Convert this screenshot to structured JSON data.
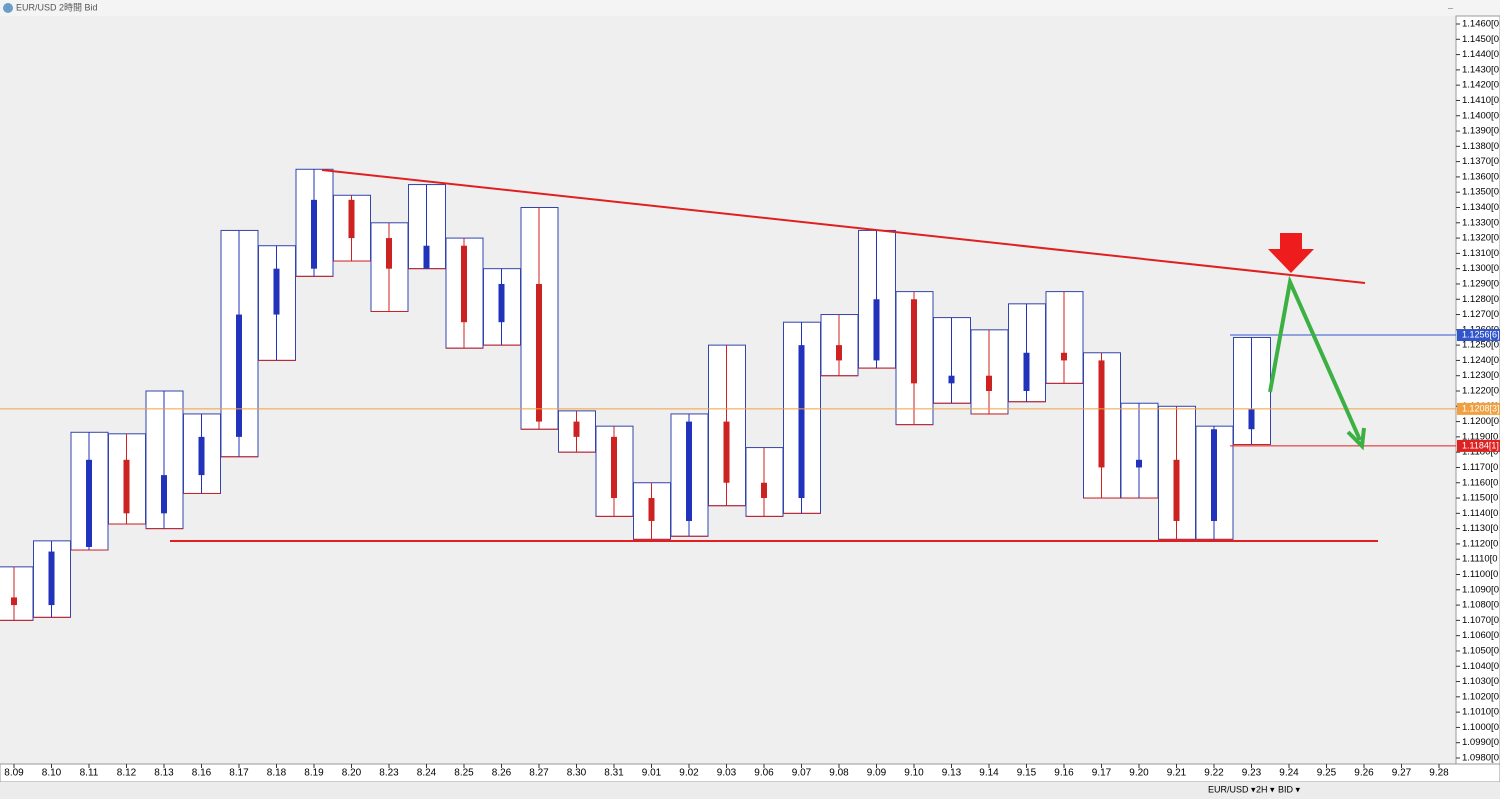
{
  "window": {
    "title": "EUR/USD 2時間 Bid"
  },
  "toolbar": {
    "symbol": "EUR/USD ▾",
    "period": "2H ▾",
    "side": "BID ▾"
  },
  "chart_data": {
    "type": "candlestick",
    "x": [
      "8.09",
      "8.10",
      "8.11",
      "8.12",
      "8.13",
      "8.16",
      "8.17",
      "8.18",
      "8.19",
      "8.20",
      "8.23",
      "8.24",
      "8.25",
      "8.26",
      "8.27",
      "8.30",
      "8.31",
      "9.01",
      "9.02",
      "9.03",
      "9.06",
      "9.07",
      "9.08",
      "9.09",
      "9.10",
      "9.13",
      "9.14",
      "9.15",
      "9.16",
      "9.17",
      "9.20",
      "9.21",
      "9.22",
      "9.23",
      "9.24",
      "9.25",
      "9.26",
      "9.27",
      "9.28"
    ],
    "open": [
      1.1085,
      1.108,
      1.1118,
      1.1175,
      1.114,
      1.1165,
      1.119,
      1.127,
      1.13,
      1.1345,
      1.132,
      1.13,
      1.1315,
      1.1265,
      1.129,
      1.12,
      1.119,
      1.115,
      1.1135,
      1.12,
      1.116,
      1.115,
      1.125,
      1.124,
      1.128,
      1.1225,
      1.123,
      1.122,
      1.1245,
      1.124,
      1.117,
      1.1175,
      1.1135,
      1.1195,
      null,
      null,
      null,
      null,
      null
    ],
    "high": [
      1.1105,
      1.1122,
      1.1193,
      1.1192,
      1.122,
      1.1205,
      1.1325,
      1.1315,
      1.1365,
      1.1348,
      1.133,
      1.1355,
      1.132,
      1.13,
      1.134,
      1.1207,
      1.1197,
      1.116,
      1.1205,
      1.125,
      1.1183,
      1.1265,
      1.127,
      1.1325,
      1.1285,
      1.1268,
      1.126,
      1.1277,
      1.1285,
      1.1245,
      1.1212,
      1.121,
      1.1197,
      1.1255,
      null,
      null,
      null,
      null,
      null
    ],
    "low": [
      1.107,
      1.1072,
      1.1116,
      1.1133,
      1.113,
      1.1153,
      1.1177,
      1.124,
      1.1295,
      1.1305,
      1.1272,
      1.13,
      1.1248,
      1.125,
      1.1195,
      1.118,
      1.1138,
      1.1123,
      1.1125,
      1.1145,
      1.1138,
      1.114,
      1.123,
      1.1235,
      1.1198,
      1.1212,
      1.1205,
      1.1213,
      1.1225,
      1.115,
      1.115,
      1.1123,
      1.1123,
      1.1185,
      null,
      null,
      null,
      null,
      null
    ],
    "close": [
      1.108,
      1.1115,
      1.1175,
      1.114,
      1.1165,
      1.119,
      1.127,
      1.13,
      1.1345,
      1.132,
      1.13,
      1.1315,
      1.1265,
      1.129,
      1.12,
      1.119,
      1.115,
      1.1135,
      1.12,
      1.116,
      1.115,
      1.125,
      1.124,
      1.128,
      1.1225,
      1.123,
      1.122,
      1.1245,
      1.124,
      1.117,
      1.1175,
      1.1135,
      1.1195,
      1.1208,
      null,
      null,
      null,
      null,
      null
    ],
    "up_color": "#2233bb",
    "down_color": "#cc2222",
    "ylim": [
      1.098,
      1.146
    ],
    "yticks": [
      {
        "value": 1.146,
        "label": "1.1460[0"
      },
      {
        "value": 1.145,
        "label": "1.1450[0"
      },
      {
        "value": 1.144,
        "label": "1.1440[0"
      },
      {
        "value": 1.143,
        "label": "1.1430[0"
      },
      {
        "value": 1.142,
        "label": "1.1420[0"
      },
      {
        "value": 1.141,
        "label": "1.1410[0"
      },
      {
        "value": 1.14,
        "label": "1.1400[0"
      },
      {
        "value": 1.139,
        "label": "1.1390[0"
      },
      {
        "value": 1.138,
        "label": "1.1380[0"
      },
      {
        "value": 1.137,
        "label": "1.1370[0"
      },
      {
        "value": 1.136,
        "label": "1.1360[0"
      },
      {
        "value": 1.135,
        "label": "1.1350[0"
      },
      {
        "value": 1.134,
        "label": "1.1340[0"
      },
      {
        "value": 1.133,
        "label": "1.1330[0"
      },
      {
        "value": 1.132,
        "label": "1.1320[0"
      },
      {
        "value": 1.131,
        "label": "1.1310[0"
      },
      {
        "value": 1.13,
        "label": "1.1300[0"
      },
      {
        "value": 1.129,
        "label": "1.1290[0"
      },
      {
        "value": 1.128,
        "label": "1.1280[0"
      },
      {
        "value": 1.127,
        "label": "1.1270[0"
      },
      {
        "value": 1.126,
        "label": "1.1260[0"
      },
      {
        "value": 1.125,
        "label": "1.1250[0"
      },
      {
        "value": 1.124,
        "label": "1.1240[0"
      },
      {
        "value": 1.123,
        "label": "1.1230[0"
      },
      {
        "value": 1.122,
        "label": "1.1220[0"
      },
      {
        "value": 1.121,
        "label": "1.1210[0"
      },
      {
        "value": 1.12,
        "label": "1.1200[0"
      },
      {
        "value": 1.119,
        "label": "1.1190[0"
      },
      {
        "value": 1.118,
        "label": "1.1180[0"
      },
      {
        "value": 1.117,
        "label": "1.1170[0"
      },
      {
        "value": 1.116,
        "label": "1.1160[0"
      },
      {
        "value": 1.115,
        "label": "1.1150[0"
      },
      {
        "value": 1.114,
        "label": "1.1140[0"
      },
      {
        "value": 1.113,
        "label": "1.1130[0"
      },
      {
        "value": 1.112,
        "label": "1.1120[0"
      },
      {
        "value": 1.111,
        "label": "1.1110[0"
      },
      {
        "value": 1.11,
        "label": "1.1100[0"
      },
      {
        "value": 1.109,
        "label": "1.1090[0"
      },
      {
        "value": 1.108,
        "label": "1.1080[0"
      },
      {
        "value": 1.107,
        "label": "1.1070[0"
      },
      {
        "value": 1.106,
        "label": "1.1060[0"
      },
      {
        "value": 1.105,
        "label": "1.1050[0"
      },
      {
        "value": 1.104,
        "label": "1.1040[0"
      },
      {
        "value": 1.103,
        "label": "1.1030[0"
      },
      {
        "value": 1.102,
        "label": "1.1020[0"
      },
      {
        "value": 1.101,
        "label": "1.1010[0"
      },
      {
        "value": 1.1,
        "label": "1.1000[0"
      },
      {
        "value": 1.099,
        "label": "1.0990[0"
      },
      {
        "value": 1.098,
        "label": "1.0980[0"
      }
    ],
    "price_tags": [
      {
        "value": 1.12566,
        "label": "1.1256[6]",
        "color": "#3355cc"
      },
      {
        "value": 1.12083,
        "label": "1.1208[3]",
        "color": "#f0a040"
      },
      {
        "value": 1.11841,
        "label": "1.1184[1]",
        "color": "#dd2222"
      }
    ]
  }
}
